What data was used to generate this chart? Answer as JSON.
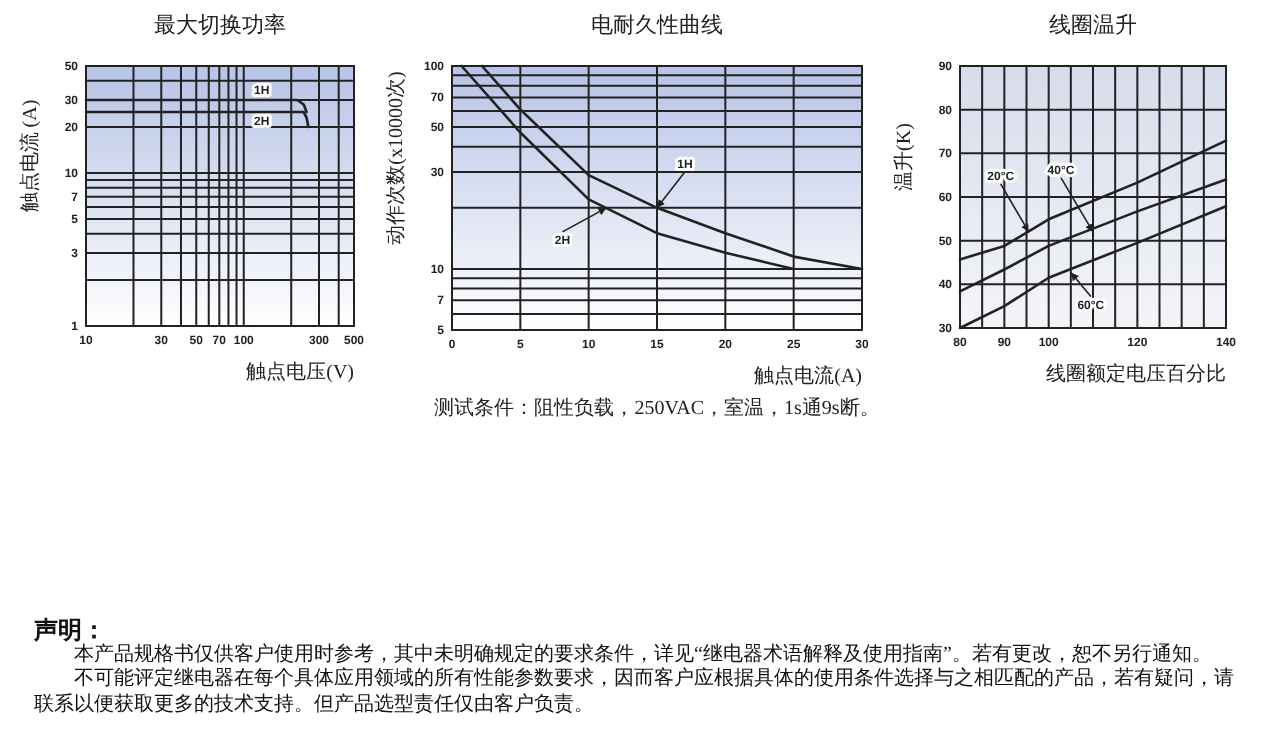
{
  "chart_data": [
    {
      "type": "line",
      "title": "最大切换功率",
      "xlabel": "触点电压(V)",
      "ylabel": "触点电流 (A)",
      "log": "xy",
      "grid": true,
      "xlim": [
        10,
        500
      ],
      "ylim": [
        1,
        50
      ],
      "xticks": [
        10,
        {
          "value": 20,
          "label": null
        },
        30,
        {
          "value": 40,
          "label": null
        },
        50,
        {
          "value": 60,
          "label": null
        },
        70,
        {
          "value": 80,
          "label": null
        },
        {
          "value": 90,
          "label": null
        },
        100,
        {
          "value": 200,
          "label": null
        },
        300,
        {
          "value": 400,
          "label": null
        },
        500
      ],
      "yticks": [
        1,
        {
          "value": 2,
          "label": null
        },
        3,
        {
          "value": 4,
          "label": null
        },
        5,
        {
          "value": 6,
          "label": null
        },
        7,
        {
          "value": 8,
          "label": null
        },
        {
          "value": 9,
          "label": null
        },
        10,
        20,
        30,
        {
          "value": 40,
          "label": null
        },
        50
      ],
      "series": [
        {
          "color": "#222222",
          "x": [
            10,
            218,
            240,
            250
          ],
          "values": [
            30,
            30,
            28,
            25
          ]
        },
        {
          "color": "#222222",
          "x": [
            10,
            240,
            250,
            257
          ],
          "values": [
            25,
            25,
            23,
            20
          ]
        }
      ],
      "annotations": [
        {
          "text": "1H",
          "x": 130,
          "y": 30
        },
        {
          "text": "2H",
          "x": 130,
          "y": 25
        }
      ]
    },
    {
      "type": "line",
      "title": "电耐久性曲线",
      "xlabel": "触点电流(A)",
      "ylabel": "动作次数(x10000次)",
      "log": "y",
      "grid": true,
      "xlim": [
        0,
        30
      ],
      "ylim": [
        5,
        100
      ],
      "xticks": [
        0,
        5,
        10,
        15,
        20,
        25,
        30
      ],
      "yticks": [
        5,
        {
          "value": 6,
          "label": null
        },
        7,
        {
          "value": 8,
          "label": null
        },
        {
          "value": 9,
          "label": null
        },
        10,
        {
          "value": 20,
          "label": null
        },
        30,
        {
          "value": 40,
          "label": null
        },
        50,
        {
          "value": 60,
          "label": null
        },
        70,
        {
          "value": 80,
          "label": null
        },
        {
          "value": 90,
          "label": null
        },
        100
      ],
      "series": [
        {
          "color": "#222222",
          "x": [
            2.2,
            5,
            10,
            15,
            20,
            25,
            30
          ],
          "values": [
            100,
            61,
            29,
            20,
            15,
            11.5,
            10
          ]
        },
        {
          "color": "#222222",
          "x": [
            0.7,
            5,
            10,
            15,
            20,
            25
          ],
          "values": [
            100,
            47,
            22,
            15,
            12,
            10
          ]
        }
      ],
      "annotations": [
        {
          "text": "1H",
          "x": 15,
          "y": 20
        },
        {
          "text": "2H",
          "x": 11.3,
          "y": 20
        },
        "测试条件：阻性负载，250VAC，室温，1s通9s断。"
      ]
    },
    {
      "type": "line",
      "title": "线圈温升",
      "xlabel": "线圈额定电压百分比",
      "ylabel": "温升(K)",
      "grid": true,
      "xlim": [
        80,
        140
      ],
      "ylim": [
        30,
        90
      ],
      "xticks": [
        80,
        {
          "value": 85,
          "label": null
        },
        90,
        {
          "value": 95,
          "label": null
        },
        100,
        {
          "value": 105,
          "label": null
        },
        {
          "value": 110,
          "label": null
        },
        {
          "value": 115,
          "label": null
        },
        120,
        {
          "value": 125,
          "label": null
        },
        {
          "value": 130,
          "label": null
        },
        {
          "value": 135,
          "label": null
        },
        140
      ],
      "yticks": [
        30,
        40,
        50,
        60,
        70,
        80,
        90
      ],
      "series": [
        {
          "color": "#222222",
          "x": [
            80,
            90,
            100,
            120,
            140
          ],
          "values": [
            45.7,
            48.8,
            54.9,
            63.3,
            72.9
          ]
        },
        {
          "color": "#222222",
          "x": [
            80,
            90,
            100,
            120,
            140
          ],
          "values": [
            38.4,
            43.4,
            48.8,
            56.7,
            64
          ]
        },
        {
          "color": "#222222",
          "x": [
            80,
            90,
            100,
            120,
            140
          ],
          "values": [
            30,
            35,
            41.5,
            49.5,
            57.9
          ]
        }
      ],
      "annotations": [
        {
          "text": "20°C",
          "x": 95.5,
          "y": 52
        },
        {
          "text": "40°C",
          "x": 110,
          "y": 52
        },
        {
          "text": "60°C",
          "x": 105,
          "y": 42.7
        }
      ]
    },
    {
      "type": "other",
      "title": "声明：",
      "annotations": [
        "本产品规格书仅供客户使用时参考，其中未明确规定的要求条件，详见“继电器术语解释及使用指南”。若有更改，恕不另行通知。",
        "不可能评定继电器在每个具体应用领域的所有性能参数要求，因而客户应根据具体的使用条件选择与之相匹配的产品，若有疑问，请联系以便获取更多的技术支持。但产品选型责任仅由客户负责。"
      ]
    }
  ]
}
